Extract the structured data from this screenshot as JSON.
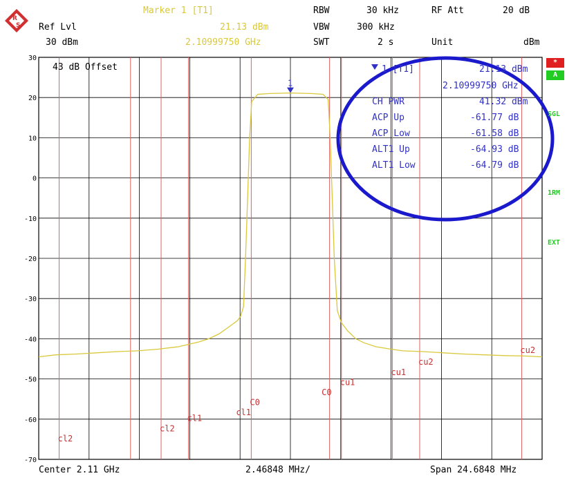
{
  "header": {
    "ref_lvl_label": "Ref Lvl",
    "ref_lvl_value": "30 dBm",
    "marker_label": "Marker 1 [T1]",
    "marker_level": "21.13 dBm",
    "marker_freq": "2.10999750 GHz",
    "rbw_label": "RBW",
    "rbw_value": "30 kHz",
    "vbw_label": "VBW",
    "vbw_value": "300 kHz",
    "swt_label": "SWT",
    "swt_value": "2 s",
    "rfatt_label": "RF Att",
    "rfatt_value": "20 dB",
    "unit_label": "Unit",
    "unit_value": "dBm"
  },
  "offset_label": "43 dB Offset",
  "marker_box": {
    "marker_number": "1",
    "title": "1 [T1]",
    "level": "21.13 dBm",
    "freq": "2.10999750 GHz",
    "rows": [
      {
        "label": "CH PWR",
        "value": "41.32 dBm"
      },
      {
        "label": "ACP Up",
        "value": "-61.77 dB"
      },
      {
        "label": "ACP Low",
        "value": "-61.58 dB"
      },
      {
        "label": "ALT1 Up",
        "value": "-64.93 dB"
      },
      {
        "label": "ALT1 Low",
        "value": "-64.79 dB"
      }
    ]
  },
  "side_badges": {
    "star": "*",
    "a": "A",
    "sgl": "SGL",
    "trm": "1RM",
    "ext": "EXT"
  },
  "footer": {
    "center": "Center 2.11 GHz",
    "div": "2.46848 MHz/",
    "span": "Span 24.6848 MHz"
  },
  "colors": {
    "trace": "#d9c83a",
    "channel_lines": "#e06060",
    "grid": "#000000",
    "marker": "#3030c8",
    "highlight_ellipse": "#1a1acc"
  },
  "chart_data": {
    "type": "line",
    "ylim": [
      -70,
      30
    ],
    "xlim": [
      -12.3424,
      12.3424
    ],
    "x_unit": "MHz offset from center",
    "yticks": [
      30,
      20,
      10,
      0,
      -10,
      -20,
      -30,
      -40,
      -50,
      -60,
      -70
    ],
    "ytick_labels": [
      "30",
      "20",
      "10",
      "0",
      "-10",
      "-20",
      "-30",
      "-40",
      "-50",
      "-60",
      "-70"
    ],
    "grid": true,
    "channel_lines": [
      {
        "label": "cl2",
        "x": -11.34
      },
      {
        "label": "cl2",
        "x": -6.34
      },
      {
        "label": "cl1",
        "x": -5.0
      },
      {
        "label": "cl1",
        "x": -7.84
      },
      {
        "label": "C0",
        "x": -1.92
      },
      {
        "label": "C0",
        "x": 1.92
      },
      {
        "label": "cu1",
        "x": 2.5
      },
      {
        "label": "cu1",
        "x": 5.0
      },
      {
        "label": "cu2",
        "x": 6.34
      },
      {
        "label": "cu2",
        "x": 11.34
      }
    ],
    "channel_label_pos": [
      {
        "label": "cl2",
        "x": -11.34,
        "y": -65.5
      },
      {
        "label": "cl2",
        "x": -6.34,
        "y": -63
      },
      {
        "label": "cl1",
        "x": -5.0,
        "y": -60.5
      },
      {
        "label": "cl1",
        "x": -2.6,
        "y": -59
      },
      {
        "label": "C0",
        "x": -1.92,
        "y": -56.5
      },
      {
        "label": "C0",
        "x": 1.6,
        "y": -54
      },
      {
        "label": "cu1",
        "x": 2.5,
        "y": -51.5
      },
      {
        "label": "cu1",
        "x": 5.0,
        "y": -49
      },
      {
        "label": "cu2",
        "x": 6.34,
        "y": -46.5
      },
      {
        "label": "cu2",
        "x": 11.34,
        "y": -43.5
      }
    ],
    "series": [
      {
        "x": [
          -12.3424,
          -11.5,
          -10.5,
          -9.5,
          -8.5,
          -7.5,
          -6.5,
          -5.5,
          -4.5,
          -4.0,
          -3.5,
          -3.0,
          -2.6,
          -2.45,
          -2.3,
          -2.2,
          -2.1,
          -2.0,
          -1.9,
          -1.6,
          -1.0,
          0.0,
          1.0,
          1.6,
          1.85,
          1.95,
          2.05,
          2.15,
          2.3,
          2.5,
          2.8,
          3.2,
          3.6,
          4.2,
          4.8,
          5.5,
          6.5,
          7.5,
          8.5,
          9.5,
          10.5,
          11.5,
          12.3424
        ],
        "y": [
          -44.5,
          -44.0,
          -43.8,
          -43.5,
          -43.2,
          -43.0,
          -42.6,
          -42.0,
          -40.8,
          -40.0,
          -38.8,
          -37.0,
          -35.5,
          -34.5,
          -32.0,
          -20.0,
          -5.0,
          10.0,
          19.0,
          20.8,
          21.0,
          21.13,
          21.0,
          20.8,
          19.5,
          10.0,
          -5.0,
          -20.0,
          -33.0,
          -36.0,
          -38.0,
          -40.0,
          -41.0,
          -42.0,
          -42.5,
          -43.0,
          -43.2,
          -43.5,
          -43.8,
          -44.0,
          -44.2,
          -44.3,
          -44.5
        ]
      }
    ],
    "marker": {
      "x": 0.0,
      "y": 21.13
    }
  }
}
